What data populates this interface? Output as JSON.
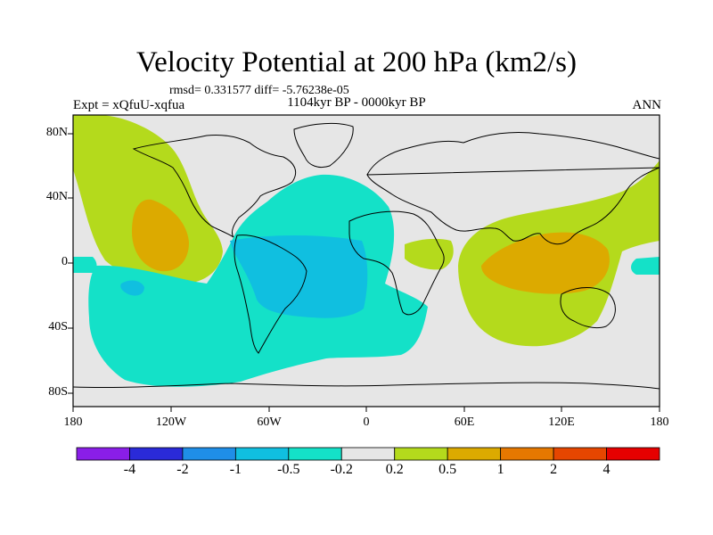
{
  "figure": {
    "title": "Velocity Potential at 200 hPa (km2/s)",
    "stats": "rmsd= 0.331577 diff= -5.76238e-05",
    "subtitle": "1104kyr BP - 0000kyr BP",
    "experiment": "Expt = xQfuU-xqfua",
    "season": "ANN"
  },
  "axes": {
    "lon_labels": [
      "180",
      "120W",
      "60W",
      "0",
      "60E",
      "120E",
      "180"
    ],
    "lat_labels": [
      "80N",
      "40N",
      "0",
      "40S",
      "80S"
    ]
  },
  "colorbar": {
    "colors": [
      "#8a1ee8",
      "#2a2ad8",
      "#1f8ee8",
      "#10bfe0",
      "#14e1c8",
      "#e6e6e6",
      "#b4da1c",
      "#dcaa00",
      "#e67800",
      "#e64600",
      "#e60000"
    ],
    "labels": [
      "-4",
      "-2",
      "-1",
      "-0.5",
      "-0.2",
      "0.2",
      "0.5",
      "1",
      "2",
      "4"
    ]
  },
  "map_colors": {
    "background": "#e6e6e6",
    "level_neg_0_2": "#14e1c8",
    "level_neg_0_5": "#10bfe0",
    "level_neg_1": "#1f8ee8",
    "level_pos_0_2": "#b4da1c",
    "level_pos_0_5": "#dcaa00"
  }
}
